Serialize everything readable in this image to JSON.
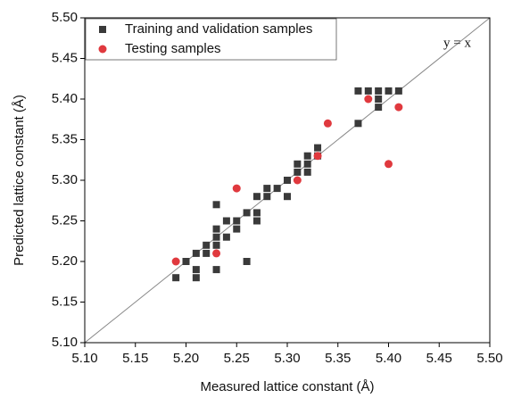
{
  "chart_data": {
    "type": "scatter",
    "x_label": "Measured lattice constant (Å)",
    "y_label": "Predicted lattice constant (Å)",
    "annotation": "y = x",
    "xlim": [
      5.1,
      5.5
    ],
    "ylim": [
      5.1,
      5.5
    ],
    "xticks": [
      {
        "value": 5.1,
        "label": "5.10"
      },
      5.15,
      {
        "value": 5.2,
        "label": "5.20"
      },
      5.25,
      {
        "value": 5.3,
        "label": "5.30"
      },
      5.35,
      {
        "value": 5.4,
        "label": "5.40"
      },
      5.45,
      {
        "value": 5.5,
        "label": "5.50"
      }
    ],
    "yticks": [
      {
        "value": 5.1,
        "label": "5.10"
      },
      5.15,
      {
        "value": 5.2,
        "label": "5.20"
      },
      5.25,
      {
        "value": 5.3,
        "label": "5.30"
      },
      5.35,
      {
        "value": 5.4,
        "label": "5.40"
      },
      5.45,
      {
        "value": 5.5,
        "label": "5.50"
      }
    ],
    "legend": "top-left",
    "series": [
      {
        "name": "Training and validation samples",
        "color": "#3a3a3a",
        "marker": "square",
        "x": [
          5.19,
          5.2,
          5.21,
          5.21,
          5.21,
          5.22,
          5.22,
          5.23,
          5.23,
          5.23,
          5.23,
          5.23,
          5.24,
          5.24,
          5.25,
          5.25,
          5.26,
          5.26,
          5.27,
          5.27,
          5.27,
          5.28,
          5.28,
          5.29,
          5.3,
          5.3,
          5.31,
          5.31,
          5.32,
          5.32,
          5.32,
          5.33,
          5.33,
          5.37,
          5.37,
          5.38,
          5.39,
          5.39,
          5.39,
          5.4,
          5.41
        ],
        "values": [
          5.18,
          5.2,
          5.18,
          5.19,
          5.21,
          5.21,
          5.22,
          5.19,
          5.22,
          5.23,
          5.24,
          5.27,
          5.23,
          5.25,
          5.24,
          5.25,
          5.2,
          5.26,
          5.25,
          5.26,
          5.28,
          5.28,
          5.29,
          5.29,
          5.28,
          5.3,
          5.31,
          5.32,
          5.31,
          5.32,
          5.33,
          5.33,
          5.34,
          5.37,
          5.41,
          5.41,
          5.39,
          5.4,
          5.41,
          5.41,
          5.41
        ]
      },
      {
        "name": "Testing samples",
        "color": "#e0393e",
        "marker": "circle",
        "x": [
          5.19,
          5.23,
          5.25,
          5.31,
          5.33,
          5.34,
          5.38,
          5.4,
          5.41
        ],
        "values": [
          5.2,
          5.21,
          5.29,
          5.3,
          5.33,
          5.37,
          5.4,
          5.32,
          5.39
        ]
      }
    ]
  }
}
